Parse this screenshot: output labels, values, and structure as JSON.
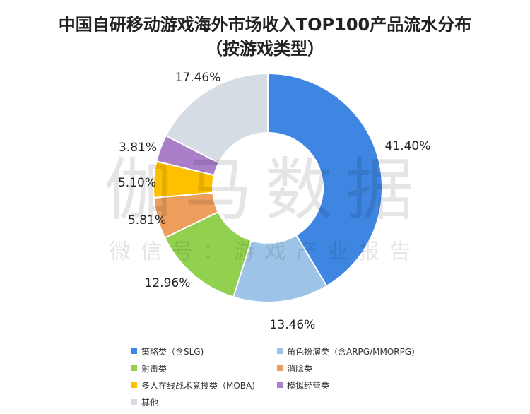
{
  "title_line1": "中国自研移动游戏海外市场收入TOP100产品流水分布",
  "title_line2": "（按游戏类型）",
  "watermark": {
    "big": "伽马数据",
    "small": "微信号：游戏产业报告"
  },
  "chart_data": {
    "type": "pie",
    "variant": "donut",
    "title": "中国自研移动游戏海外市场收入TOP100产品流水分布（按游戏类型）",
    "unit": "%",
    "legend_position": "bottom",
    "slices": [
      {
        "name": "策略类（含SLG)",
        "value": 41.4,
        "label": "41.40%",
        "color": "#3F86E2"
      },
      {
        "name": "角色扮演类（含ARPG/MMORPG)",
        "value": 13.46,
        "label": "13.46%",
        "color": "#9DC3E6"
      },
      {
        "name": "射击类",
        "value": 12.96,
        "label": "12.96%",
        "color": "#92D050"
      },
      {
        "name": "消除类",
        "value": 5.81,
        "label": "5.81%",
        "color": "#ED9E5C"
      },
      {
        "name": "多人在线战术竞技类（MOBA)",
        "value": 5.1,
        "label": "5.10%",
        "color": "#FFC000"
      },
      {
        "name": "模拟经营类",
        "value": 3.81,
        "label": "3.81%",
        "color": "#A97FC9"
      },
      {
        "name": "其他",
        "value": 17.46,
        "label": "17.46%",
        "color": "#D6DCE4"
      }
    ]
  }
}
